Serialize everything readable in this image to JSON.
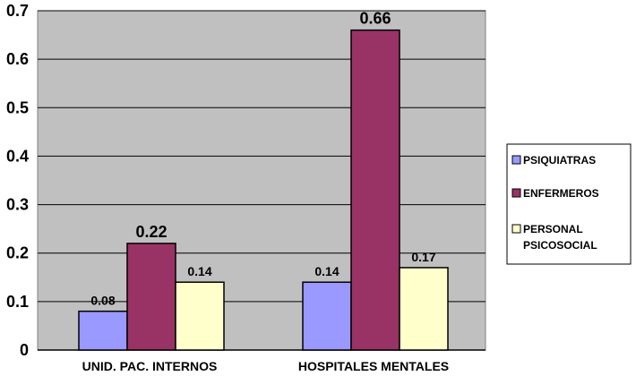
{
  "chart_data": {
    "type": "bar",
    "categories": [
      "UNID. PAC. INTERNOS",
      "HOSPITALES MENTALES"
    ],
    "series": [
      {
        "name": "PSIQUIATRAS",
        "values": [
          0.08,
          0.14
        ],
        "color": "#9999ff"
      },
      {
        "name": "ENFERMEROS",
        "values": [
          0.22,
          0.66
        ],
        "color": "#993366"
      },
      {
        "name": "PERSONAL PSICOSOCIAL",
        "values": [
          0.14,
          0.17
        ],
        "color": "#ffffcc"
      }
    ],
    "data_labels": [
      [
        "0.08",
        "0.14"
      ],
      [
        "0.22",
        "0.66"
      ],
      [
        "0.14",
        "0.17"
      ]
    ],
    "y_ticks": [
      "0",
      "0.1",
      "0.2",
      "0.3",
      "0.4",
      "0.5",
      "0.6",
      "0.7"
    ],
    "ylim": [
      0,
      0.7
    ],
    "plot_background": "#c0c0c0",
    "grid": true,
    "legend_position": "right",
    "title": "",
    "xlabel": "",
    "ylabel": ""
  }
}
